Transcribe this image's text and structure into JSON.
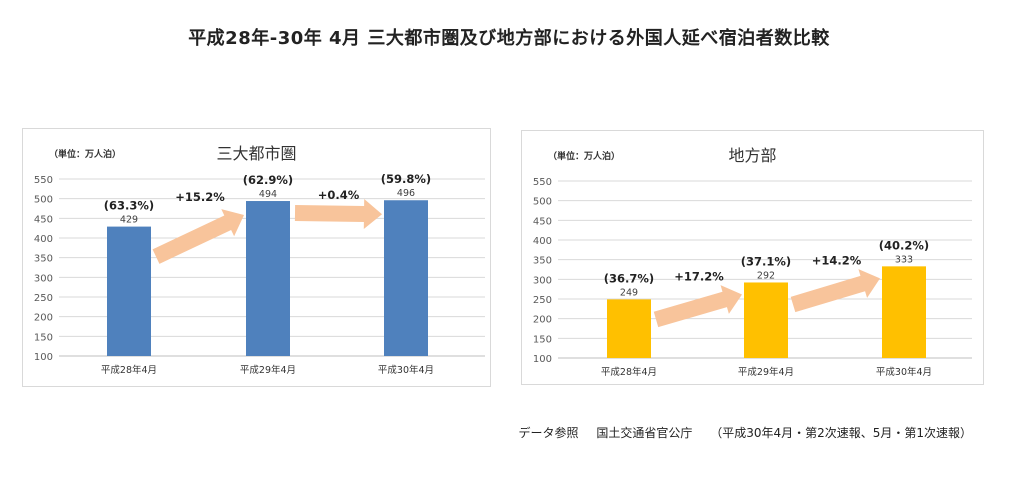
{
  "page": {
    "title": "平成28年-30年 4月 三大都市圏及び地方部における外国人延べ宿泊者数比較"
  },
  "footnote": {
    "label": "データ参照",
    "source": "国土交通省官公庁",
    "note": "（平成30年4月・第2次速報、5月・第1次速報）"
  },
  "colors": {
    "left_bar": "#4F81BD",
    "right_bar": "#FFC000",
    "arrow": "#F8C49B",
    "grid": "#d9d9d9"
  },
  "chart_data": [
    {
      "type": "bar",
      "title": "三大都市圏",
      "unit_label": "（単位：万人泊）",
      "categories": [
        "平成28年4月",
        "平成29年4月",
        "平成30年4月"
      ],
      "values": [
        429,
        494,
        496
      ],
      "value_labels": [
        "429",
        "494",
        "496"
      ],
      "share_labels": [
        "(63.3%)",
        "(62.9%)",
        "(59.8%)"
      ],
      "growth_labels": [
        "+15.2%",
        "+0.4%"
      ],
      "ylim": [
        100,
        550
      ],
      "yticks": [
        100,
        150,
        200,
        250,
        300,
        350,
        400,
        450,
        500,
        550
      ],
      "grid": true,
      "bar_color": "#4F81BD"
    },
    {
      "type": "bar",
      "title": "地方部",
      "unit_label": "（単位：万人泊）",
      "categories": [
        "平成28年4月",
        "平成29年4月",
        "平成30年4月"
      ],
      "values": [
        249,
        292,
        333
      ],
      "value_labels": [
        "249",
        "292",
        "333"
      ],
      "share_labels": [
        "(36.7%)",
        "(37.1%)",
        "(40.2%)"
      ],
      "growth_labels": [
        "+17.2%",
        "+14.2%"
      ],
      "ylim": [
        100,
        550
      ],
      "yticks": [
        100,
        150,
        200,
        250,
        300,
        350,
        400,
        450,
        500,
        550
      ],
      "grid": true,
      "bar_color": "#FFC000"
    }
  ]
}
